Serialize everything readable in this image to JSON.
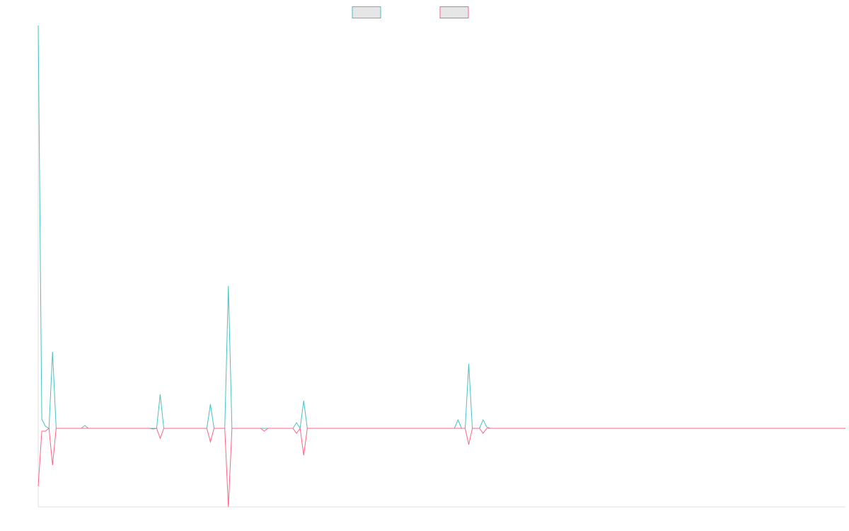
{
  "chart_data": {
    "type": "line",
    "x": [
      0,
      1,
      2,
      3,
      4,
      5,
      12,
      13,
      14,
      31,
      32,
      33,
      34,
      35,
      46,
      47,
      48,
      49,
      52,
      53,
      54,
      62,
      63,
      64,
      71,
      72,
      73,
      74,
      75,
      116,
      117,
      118,
      119,
      120,
      121,
      123,
      124,
      125,
      126,
      127,
      225
    ],
    "xlim": [
      0,
      225
    ],
    "ylim": [
      -1.11,
      5.69
    ],
    "legend": "top",
    "series": [
      {
        "color": "#4bc0c0",
        "values": [
          5.69,
          0.13,
          0.03,
          0,
          1.08,
          0,
          0,
          0.04,
          0,
          0,
          0,
          0,
          0.48,
          0,
          0,
          0,
          0.34,
          0,
          0,
          2.01,
          0,
          0,
          0,
          0,
          0,
          0.08,
          0,
          0.39,
          0,
          0,
          0.12,
          0,
          0,
          0.91,
          0,
          0,
          0.12,
          0.02,
          0,
          0,
          0
        ]
      },
      {
        "color": "#ff6384",
        "values": [
          -0.82,
          -0.04,
          -0.04,
          0,
          -0.52,
          0,
          0,
          0,
          0,
          0,
          -0.01,
          0,
          -0.14,
          0,
          0,
          0,
          -0.19,
          0,
          0,
          -1.11,
          0,
          0,
          -0.04,
          0,
          0,
          -0.07,
          0,
          -0.38,
          0,
          0,
          0,
          0,
          0,
          -0.23,
          0,
          0,
          -0.07,
          0,
          0,
          0,
          0
        ]
      }
    ]
  }
}
